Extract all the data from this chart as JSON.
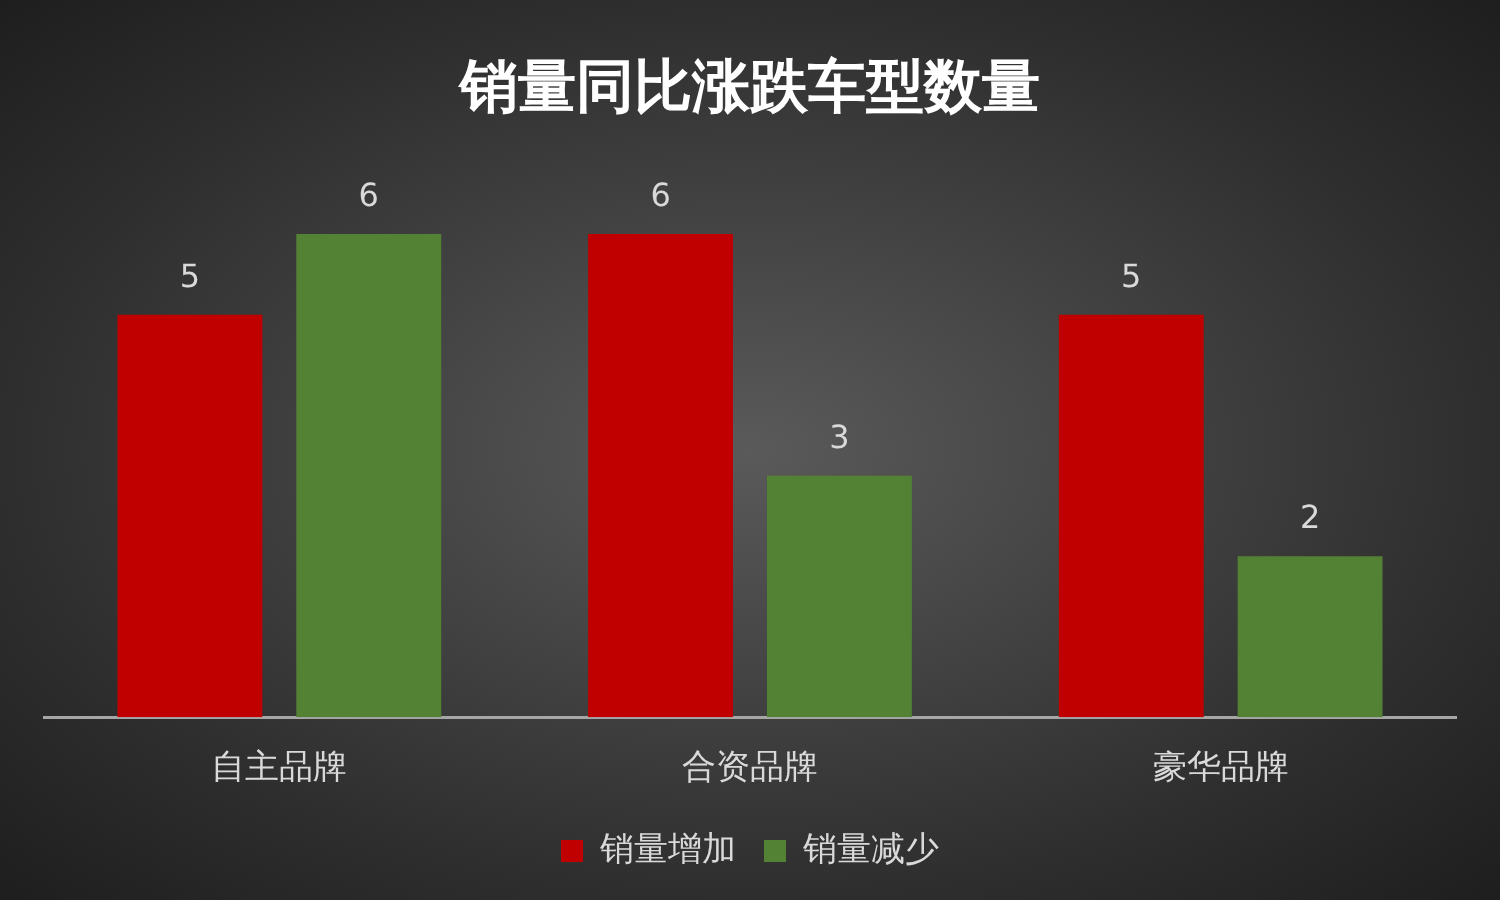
{
  "chart_data": {
    "type": "bar",
    "title": "销量同比涨跌车型数量",
    "categories": [
      "自主品牌",
      "合资品牌",
      "豪华品牌"
    ],
    "series": [
      {
        "name": "销量增加",
        "color": "#c00000",
        "values": [
          5,
          6,
          5
        ]
      },
      {
        "name": "销量减少",
        "color": "#548235",
        "values": [
          6,
          3,
          2
        ]
      }
    ],
    "data_labels": true,
    "legend": "bottom",
    "tick_labels": "x"
  }
}
